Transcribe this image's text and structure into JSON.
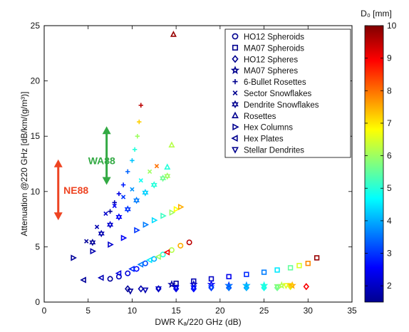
{
  "chart_data": {
    "type": "scatter",
    "title": "",
    "xlabel": "DWR Kₐ/220 GHz (dB)",
    "ylabel": "Attenuation  @220 GHz [dB/km/(g/m³)]",
    "xlim": [
      0,
      35
    ],
    "ylim": [
      0,
      25
    ],
    "x_ticks": [
      0,
      5,
      10,
      15,
      20,
      25,
      30,
      35
    ],
    "y_ticks": [
      0,
      5,
      10,
      15,
      20,
      25
    ],
    "grid": false,
    "legend_position": "top-right",
    "colorbar": {
      "label": "D₀ [mm]",
      "range": [
        1.5,
        10
      ],
      "ticks": [
        2,
        3,
        4,
        5,
        6,
        7,
        8,
        9,
        10
      ]
    },
    "annotations": [
      {
        "text": "WA88",
        "color": "#33aa44",
        "arrow_y": [
          10.6,
          15.9
        ],
        "arrow_x": 7.1,
        "text_x": 5.0,
        "text_y": 12.8
      },
      {
        "text": "NE88",
        "color": "#ee4422",
        "arrow_y": [
          7.4,
          12.9
        ],
        "arrow_x": 1.6,
        "text_x": 2.2,
        "text_y": 10.1
      }
    ],
    "series": [
      {
        "name": "HO12 Spheroids",
        "marker": "circle",
        "x": [
          7.5,
          8.5,
          9.5,
          10.5,
          11.5,
          12.5,
          13.5,
          14.5,
          15.5,
          16.5
        ],
        "y": [
          2.1,
          2.3,
          2.6,
          3.0,
          3.5,
          3.9,
          4.3,
          4.7,
          5.1,
          5.4
        ],
        "d0": [
          1.6,
          1.9,
          2.2,
          2.6,
          3.2,
          4.0,
          5.0,
          6.2,
          7.5,
          9.5
        ]
      },
      {
        "name": "MA07 Spheroids",
        "marker": "square",
        "x": [
          15,
          17,
          19,
          21,
          23,
          25,
          26.5,
          28,
          29,
          30,
          31
        ],
        "y": [
          1.7,
          1.9,
          2.1,
          2.3,
          2.5,
          2.7,
          2.9,
          3.1,
          3.3,
          3.5,
          4.0
        ],
        "d0": [
          1.6,
          1.8,
          2.0,
          2.4,
          2.9,
          3.6,
          4.5,
          5.5,
          6.5,
          7.8,
          9.8
        ]
      },
      {
        "name": "HO12 Spheres",
        "marker": "diamond",
        "x": [
          9.5,
          11,
          13,
          15,
          17,
          19,
          21,
          23,
          25,
          26.5,
          28,
          29.8
        ],
        "y": [
          1.2,
          1.2,
          1.2,
          1.2,
          1.2,
          1.3,
          1.3,
          1.3,
          1.3,
          1.3,
          1.4,
          1.4
        ],
        "d0": [
          1.6,
          1.8,
          2.0,
          2.3,
          2.6,
          3.0,
          3.5,
          4.0,
          4.8,
          5.6,
          6.5,
          9.0
        ]
      },
      {
        "name": "MA07 Spheres",
        "marker": "pentagram",
        "x": [
          14.5,
          17,
          19,
          21,
          23,
          25,
          27,
          28.2
        ],
        "y": [
          1.6,
          1.6,
          1.6,
          1.5,
          1.5,
          1.5,
          1.5,
          1.5
        ],
        "d0": [
          1.7,
          2.0,
          2.5,
          3.0,
          3.8,
          4.8,
          6.2,
          7.5
        ]
      },
      {
        "name": "6-Bullet Rosettes",
        "marker": "plus",
        "x": [
          7.5,
          8.0,
          8.5,
          9.0,
          9.5,
          10.0,
          10.3,
          10.6,
          10.8,
          11.0
        ],
        "y": [
          8.2,
          9.0,
          9.8,
          10.6,
          11.8,
          12.8,
          13.8,
          15.0,
          16.3,
          17.8
        ],
        "d0": [
          1.6,
          1.9,
          2.3,
          2.8,
          3.4,
          4.2,
          5.0,
          6.0,
          7.2,
          9.5
        ]
      },
      {
        "name": "Sector Snowflakes",
        "marker": "x",
        "x": [
          4.8,
          6.0,
          7.0,
          8.0,
          9.0,
          10.0,
          11.0,
          12.0,
          12.8
        ],
        "y": [
          5.5,
          6.8,
          8.0,
          8.7,
          9.5,
          10.2,
          11.0,
          11.8,
          12.3
        ],
        "d0": [
          1.6,
          1.8,
          2.1,
          2.5,
          3.0,
          3.8,
          4.8,
          6.0,
          8.0
        ]
      },
      {
        "name": "Dendrite Snowflakes",
        "marker": "hexagram",
        "x": [
          5.5,
          6.5,
          7.5,
          8.5,
          9.5,
          10.5,
          11.5,
          12.5,
          13.5,
          14.0
        ],
        "y": [
          5.4,
          6.2,
          7.0,
          7.7,
          8.4,
          9.2,
          9.9,
          10.6,
          11.2,
          11.4
        ],
        "d0": [
          1.6,
          1.8,
          2.1,
          2.5,
          3.0,
          3.6,
          4.3,
          5.0,
          5.6,
          6.0
        ]
      },
      {
        "name": "Rosettes",
        "marker": "triangle-up",
        "x": [
          14.0,
          14.5,
          14.7
        ],
        "y": [
          12.2,
          14.2,
          24.2
        ],
        "d0": [
          5.0,
          6.2,
          9.8
        ]
      },
      {
        "name": "Hex Columns",
        "marker": "triangle-right",
        "x": [
          3.3,
          5.5,
          7.5,
          9.0,
          10.5,
          11.5,
          12.5,
          13.5,
          14.5,
          15.0,
          15.5
        ],
        "y": [
          4.0,
          4.6,
          5.2,
          5.8,
          6.5,
          7.0,
          7.4,
          7.8,
          8.1,
          8.4,
          8.6
        ],
        "d0": [
          1.6,
          1.8,
          2.1,
          2.5,
          3.0,
          3.6,
          4.4,
          5.2,
          6.0,
          6.8,
          7.5
        ]
      },
      {
        "name": "Hex Plates",
        "marker": "triangle-left",
        "x": [
          4.5,
          6.5,
          8.5,
          10.0,
          11.0,
          12.0,
          13.0,
          14.0
        ],
        "y": [
          2.0,
          2.2,
          2.6,
          3.0,
          3.4,
          3.8,
          4.1,
          4.5
        ],
        "d0": [
          1.6,
          1.9,
          2.3,
          2.9,
          3.6,
          4.5,
          6.0,
          9.0
        ]
      },
      {
        "name": "Stellar Dendrites",
        "marker": "triangle-down",
        "x": [
          9.8,
          11.5,
          13,
          15,
          17,
          19,
          21,
          23,
          25,
          26.5,
          27.5,
          28
        ],
        "y": [
          1.0,
          1.1,
          1.2,
          1.3,
          1.3,
          1.3,
          1.4,
          1.4,
          1.4,
          1.4,
          1.5,
          1.5
        ],
        "d0": [
          1.6,
          1.8,
          2.0,
          2.3,
          2.7,
          3.1,
          3.6,
          4.2,
          5.0,
          5.8,
          6.6,
          7.2
        ]
      }
    ]
  }
}
